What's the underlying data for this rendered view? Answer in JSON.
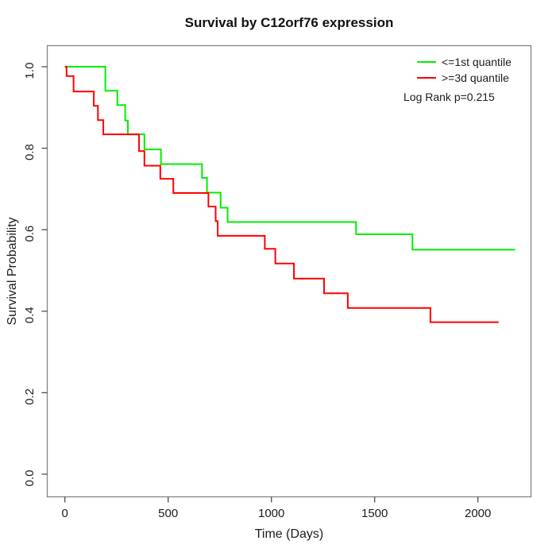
{
  "chart_data": {
    "type": "line",
    "subtype": "kaplan-meier-step",
    "title": "Survival by C12orf76 expression",
    "xlabel": "Time (Days)",
    "ylabel": "Survival Probability",
    "x_ticks": [
      0,
      500,
      1000,
      1500,
      2000
    ],
    "y_ticks": [
      "0.0",
      "0.2",
      "0.4",
      "0.6",
      "0.8",
      "1.0"
    ],
    "xlim": [
      -83,
      2255
    ],
    "ylim": [
      -0.055,
      1.05
    ],
    "grid": false,
    "legend_position": "top-right",
    "annotation": "Log Rank p=0.215",
    "colors": {
      "low_expression": "#00ee00",
      "high_expression": "#ff0000",
      "box": "#848484",
      "tick": "#4d4d4d",
      "text": "#1c1c1c"
    },
    "series": [
      {
        "name": "<=1st quantile",
        "color": "#00ee00",
        "start": {
          "time": 0,
          "surv": 1.0
        },
        "drop_times": [
          196,
          254,
          292,
          305,
          385,
          465,
          664,
          688,
          754,
          788,
          1410,
          1683
        ],
        "surv_after": [
          0.941,
          0.906,
          0.868,
          0.834,
          0.797,
          0.761,
          0.727,
          0.691,
          0.654,
          0.619,
          0.589,
          0.551
        ],
        "end_time": 2180
      },
      {
        "name": ">=3d quantile",
        "color": "#ff0000",
        "start": {
          "time": 0,
          "surv": 1.0
        },
        "drop_times": [
          8,
          42,
          140,
          160,
          186,
          359,
          385,
          462,
          525,
          695,
          730,
          740,
          968,
          1019,
          1109,
          1255,
          1370,
          1770
        ],
        "surv_after": [
          0.977,
          0.939,
          0.904,
          0.869,
          0.834,
          0.793,
          0.757,
          0.725,
          0.69,
          0.657,
          0.621,
          0.585,
          0.553,
          0.517,
          0.48,
          0.444,
          0.408,
          0.373
        ],
        "end_time": 2100
      }
    ]
  }
}
